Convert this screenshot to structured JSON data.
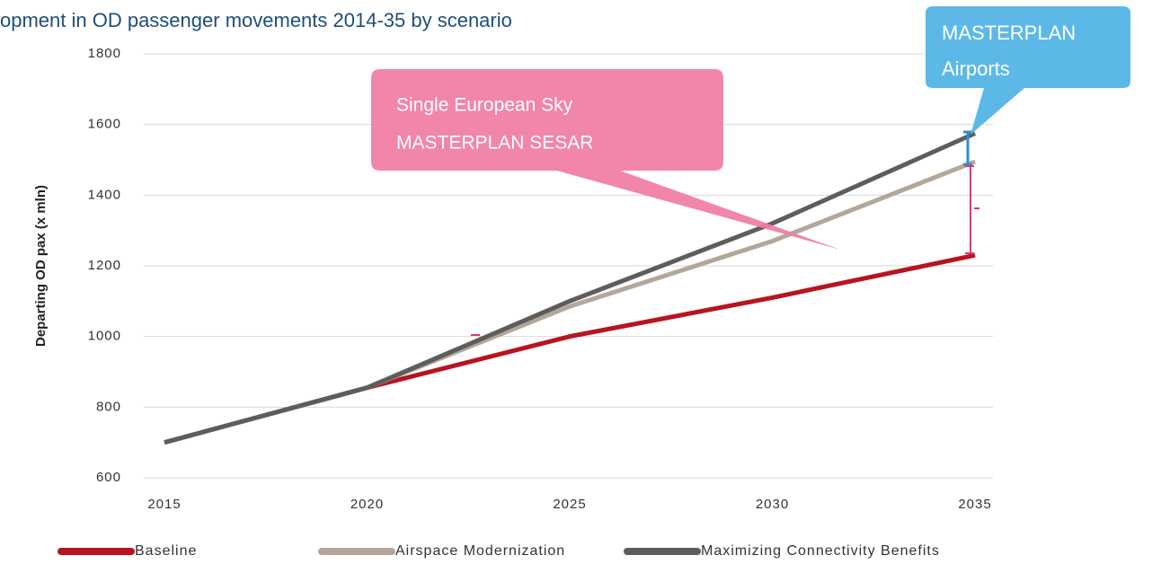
{
  "chart_data": {
    "type": "line",
    "title": "opment in OD passenger movements 2014-35 by scenario",
    "ylabel": "Departing OD pax (x mln)",
    "x": [
      2015,
      2020,
      2025,
      2030,
      2035
    ],
    "xlim": [
      2015,
      2035
    ],
    "xticks": [
      2015,
      2020,
      2025,
      2030,
      2035
    ],
    "ylim": [
      600,
      1800
    ],
    "yticks": [
      600,
      800,
      1000,
      1200,
      1400,
      1600,
      1800
    ],
    "grid": true,
    "legend": "bottom",
    "series": [
      {
        "name": "Baseline",
        "color": "#b8141f",
        "values": [
          700,
          855,
          1000,
          1110,
          1230
        ]
      },
      {
        "name": "Airspace Modernization",
        "color": "#b3a797",
        "values": [
          700,
          855,
          1085,
          1270,
          1495
        ]
      },
      {
        "name": "Maximizing Connectivity Benefits",
        "color": "#5d5d5d",
        "values": [
          700,
          855,
          1100,
          1320,
          1575
        ]
      }
    ],
    "annotations": [
      {
        "text": [
          "Single European Sky",
          "MASTERPLAN SESAR"
        ],
        "color": "#f07ca3"
      },
      {
        "text": [
          "MASTERPLAN",
          "Airports"
        ],
        "color": "#5cb9e7"
      }
    ]
  }
}
